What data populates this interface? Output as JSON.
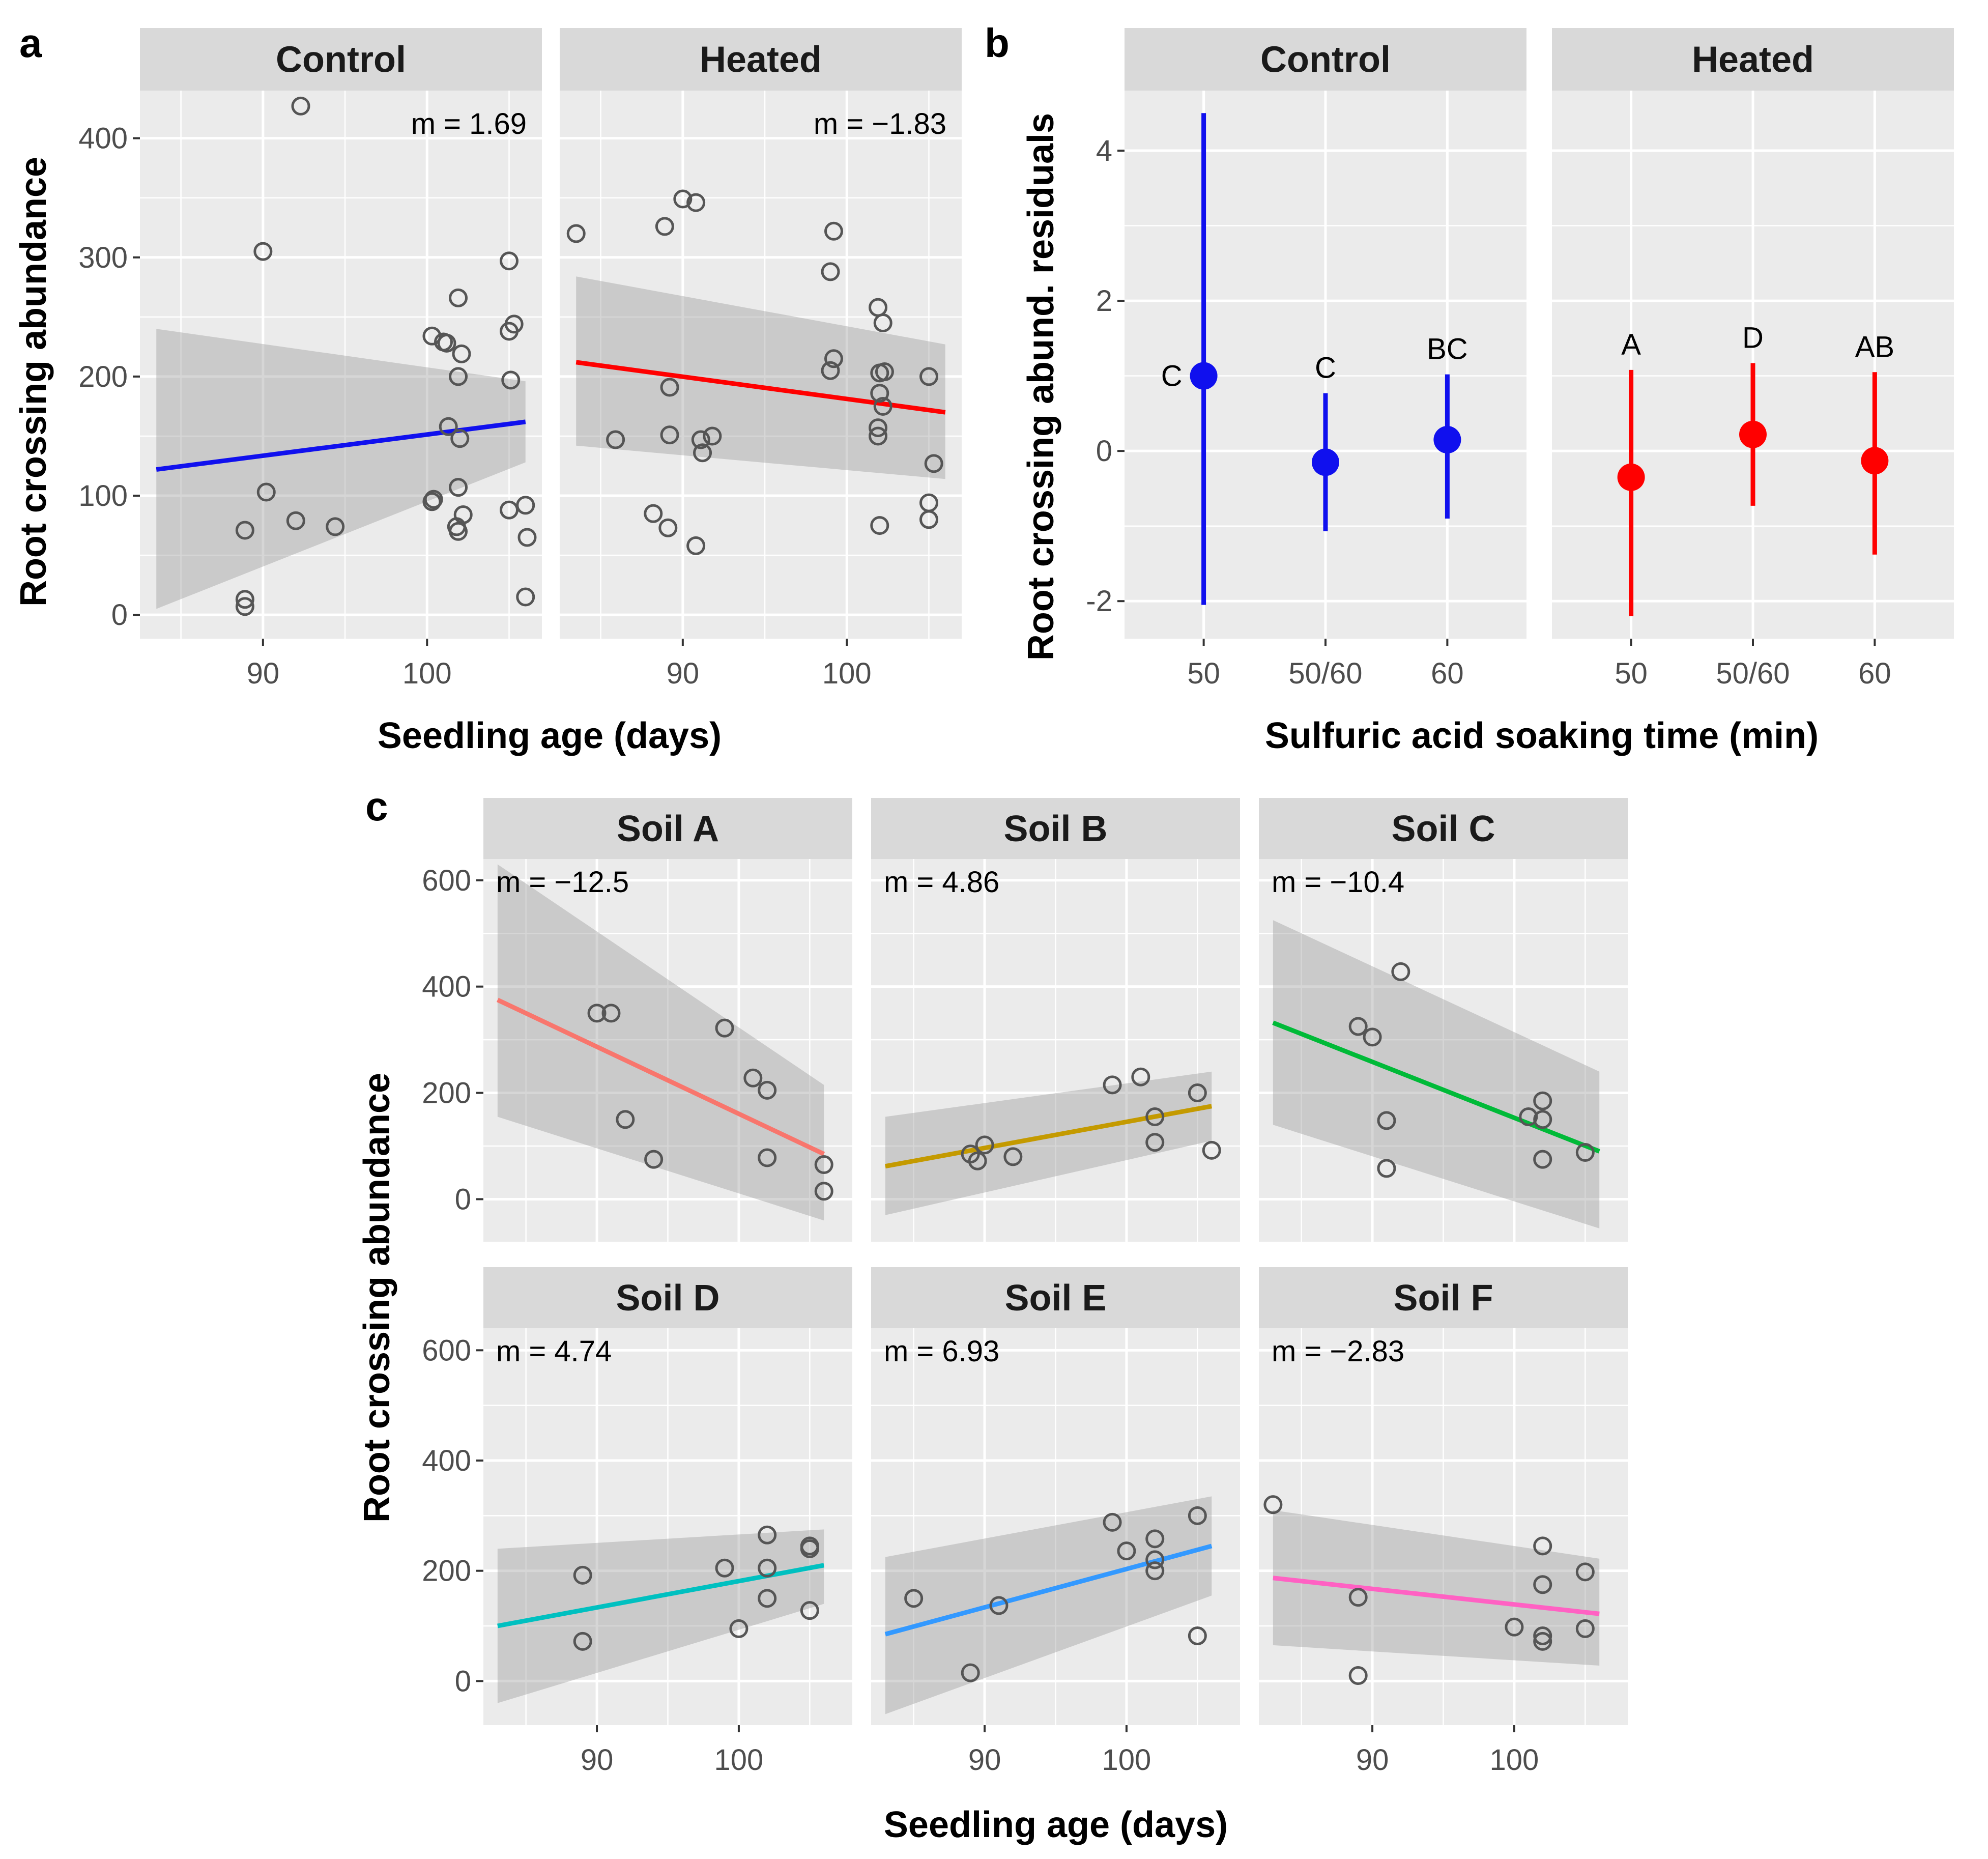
{
  "panel_labels": {
    "a": "a",
    "b": "b",
    "c": "c"
  },
  "colors": {
    "control_blue": "#1010ee",
    "heated_red": "#ff0000",
    "soil_A": "#f8766d",
    "soil_B": "#c49a00",
    "soil_C": "#00ba38",
    "soil_D": "#00c0c0",
    "soil_E": "#3399ff",
    "soil_F": "#ff61c3",
    "points": "#555555",
    "band": "#999999"
  },
  "chart_data": [
    {
      "id": "a",
      "type": "scatter",
      "xlabel": "Seedling age (days)",
      "ylabel": "Root crossing abundance",
      "xlim": [
        82.5,
        107
      ],
      "ylim": [
        -20,
        440
      ],
      "xticks": [
        90,
        100
      ],
      "yticks": [
        0,
        100,
        200,
        300,
        400
      ],
      "facets": [
        {
          "label": "Control",
          "slope_label": "m = 1.69",
          "line_color": "#1010ee",
          "fit": {
            "x": [
              83.5,
              106
            ],
            "y": [
              122,
              162
            ]
          },
          "band": {
            "x": [
              83.5,
              106
            ],
            "upper": [
              240,
              196
            ],
            "lower": [
              5,
              128
            ]
          },
          "points": [
            [
              92.3,
              427
            ],
            [
              90,
              305
            ],
            [
              105,
              297
            ],
            [
              101.9,
              266
            ],
            [
              105.3,
              244
            ],
            [
              105,
              238
            ],
            [
              100.3,
              234
            ],
            [
              101,
              229
            ],
            [
              101.2,
              228
            ],
            [
              102.1,
              219
            ],
            [
              101.9,
              200
            ],
            [
              105.1,
              197
            ],
            [
              101.3,
              158
            ],
            [
              102,
              148
            ],
            [
              90.2,
              103
            ],
            [
              101.9,
              107
            ],
            [
              100.4,
              97
            ],
            [
              100.3,
              95
            ],
            [
              105,
              88
            ],
            [
              106,
              92
            ],
            [
              92,
              79
            ],
            [
              94.4,
              74
            ],
            [
              102.2,
              84
            ],
            [
              101.8,
              74
            ],
            [
              101.9,
              70
            ],
            [
              88.9,
              71
            ],
            [
              106.1,
              65
            ],
            [
              88.9,
              13
            ],
            [
              88.9,
              7
            ],
            [
              106,
              15
            ]
          ]
        },
        {
          "label": "Heated",
          "slope_label": "m = −1.83",
          "line_color": "#ff0000",
          "fit": {
            "x": [
              83.5,
              106
            ],
            "y": [
              212,
              170
            ]
          },
          "band": {
            "x": [
              83.5,
              106
            ],
            "upper": [
              284,
              227
            ],
            "lower": [
              142,
              114
            ]
          },
          "points": [
            [
              83.5,
              320
            ],
            [
              90,
              349
            ],
            [
              90.8,
              346
            ],
            [
              88.9,
              326
            ],
            [
              99.2,
              322
            ],
            [
              99,
              288
            ],
            [
              101.9,
              258
            ],
            [
              102.2,
              245
            ],
            [
              99.2,
              215
            ],
            [
              99,
              205
            ],
            [
              102.3,
              204
            ],
            [
              102,
              203
            ],
            [
              105,
              200
            ],
            [
              89.2,
              191
            ],
            [
              102,
              186
            ],
            [
              102.2,
              175
            ],
            [
              101.9,
              157
            ],
            [
              101.9,
              150
            ],
            [
              85.9,
              147
            ],
            [
              89.2,
              151
            ],
            [
              91.8,
              150
            ],
            [
              91.1,
              147
            ],
            [
              91.2,
              136
            ],
            [
              105.3,
              127
            ],
            [
              105,
              94
            ],
            [
              105,
              80
            ],
            [
              88.2,
              85
            ],
            [
              89.1,
              73
            ],
            [
              102,
              75
            ],
            [
              90.8,
              58
            ]
          ]
        }
      ]
    },
    {
      "id": "b",
      "type": "errorbar",
      "xlabel": "Sulfuric acid soaking time (min)",
      "ylabel": "Root crossing abund. residuals",
      "ylim": [
        -2.5,
        4.8
      ],
      "yticks": [
        -2,
        0,
        2,
        4
      ],
      "ytick_labels": [
        "-2",
        "0",
        "2",
        "4"
      ],
      "categories": [
        "50",
        "50/60",
        "60"
      ],
      "facets": [
        {
          "label": "Control",
          "color": "#1010ee",
          "points": [
            {
              "cat": "50",
              "mean": 1.0,
              "lo": -2.05,
              "hi": 4.5,
              "letter": "C",
              "letter_pos": "left"
            },
            {
              "cat": "50/60",
              "mean": -0.15,
              "lo": -1.07,
              "hi": 0.77,
              "letter": "C",
              "letter_pos": "top"
            },
            {
              "cat": "60",
              "mean": 0.15,
              "lo": -0.9,
              "hi": 1.02,
              "letter": "BC",
              "letter_pos": "top"
            }
          ]
        },
        {
          "label": "Heated",
          "color": "#ff0000",
          "points": [
            {
              "cat": "50",
              "mean": -0.35,
              "lo": -2.2,
              "hi": 1.08,
              "letter": "A",
              "letter_pos": "top"
            },
            {
              "cat": "50/60",
              "mean": 0.22,
              "lo": -0.73,
              "hi": 1.17,
              "letter": "D",
              "letter_pos": "top"
            },
            {
              "cat": "60",
              "mean": -0.13,
              "lo": -1.38,
              "hi": 1.05,
              "letter": "AB",
              "letter_pos": "top"
            }
          ]
        }
      ]
    },
    {
      "id": "c",
      "type": "scatter",
      "xlabel": "Seedling age (days)",
      "ylabel": "Root crossing abundance",
      "xlim": [
        82,
        108
      ],
      "ylim": [
        -80,
        640
      ],
      "xticks": [
        90,
        100
      ],
      "yticks": [
        0,
        200,
        400,
        600
      ],
      "facets": [
        {
          "label": "Soil A",
          "slope_label": "m = −12.5",
          "line_color": "#f8766d",
          "fit": {
            "x": [
              83,
              106
            ],
            "y": [
              375,
              85
            ]
          },
          "band": {
            "x": [
              83,
              106
            ],
            "upper": [
              630,
              215
            ],
            "lower": [
              155,
              -40
            ]
          },
          "points": [
            [
              90,
              350
            ],
            [
              91,
              350
            ],
            [
              92,
              150
            ],
            [
              94,
              75
            ],
            [
              99,
              322
            ],
            [
              101,
              228
            ],
            [
              102,
              205
            ],
            [
              102,
              78
            ],
            [
              106,
              65
            ],
            [
              106,
              15
            ]
          ]
        },
        {
          "label": "Soil B",
          "slope_label": "m = 4.86",
          "line_color": "#c49a00",
          "fit": {
            "x": [
              83,
              106
            ],
            "y": [
              62,
              175
            ]
          },
          "band": {
            "x": [
              83,
              106
            ],
            "upper": [
              155,
              240
            ],
            "lower": [
              -30,
              110
            ]
          },
          "points": [
            [
              89,
              85
            ],
            [
              89.5,
              72
            ],
            [
              90,
              102
            ],
            [
              92,
              80
            ],
            [
              99,
              215
            ],
            [
              101,
              230
            ],
            [
              102,
              155
            ],
            [
              102,
              107
            ],
            [
              105,
              200
            ],
            [
              106,
              92
            ]
          ]
        },
        {
          "label": "Soil C",
          "slope_label": "m = −10.4",
          "line_color": "#00ba38",
          "fit": {
            "x": [
              83,
              106
            ],
            "y": [
              332,
              90
            ]
          },
          "band": {
            "x": [
              83,
              106
            ],
            "upper": [
              525,
              240
            ],
            "lower": [
              140,
              -55
            ]
          },
          "points": [
            [
              92,
              428
            ],
            [
              89,
              325
            ],
            [
              90,
              305
            ],
            [
              91,
              148
            ],
            [
              91,
              58
            ],
            [
              101,
              155
            ],
            [
              102,
              185
            ],
            [
              102,
              150
            ],
            [
              102,
              75
            ],
            [
              105,
              88
            ]
          ]
        },
        {
          "label": "Soil D",
          "slope_label": "m = 4.74",
          "line_color": "#00c0c0",
          "fit": {
            "x": [
              83,
              106
            ],
            "y": [
              100,
              210
            ]
          },
          "band": {
            "x": [
              83,
              106
            ],
            "upper": [
              240,
              275
            ],
            "lower": [
              -40,
              140
            ]
          },
          "points": [
            [
              89,
              192
            ],
            [
              89,
              72
            ],
            [
              99,
              205
            ],
            [
              100,
              95
            ],
            [
              102,
              265
            ],
            [
              102,
              205
            ],
            [
              102,
              150
            ],
            [
              105,
              245
            ],
            [
              105,
              240
            ],
            [
              105,
              128
            ]
          ]
        },
        {
          "label": "Soil E",
          "slope_label": "m = 6.93",
          "line_color": "#3399ff",
          "fit": {
            "x": [
              83,
              106
            ],
            "y": [
              85,
              245
            ]
          },
          "band": {
            "x": [
              83,
              106
            ],
            "upper": [
              225,
              335
            ],
            "lower": [
              -60,
              155
            ]
          },
          "points": [
            [
              85,
              150
            ],
            [
              89,
              15
            ],
            [
              91,
              137
            ],
            [
              99,
              288
            ],
            [
              100,
              236
            ],
            [
              102,
              258
            ],
            [
              102,
              220
            ],
            [
              102,
              200
            ],
            [
              105,
              300
            ],
            [
              105,
              82
            ]
          ]
        },
        {
          "label": "Soil F",
          "slope_label": "m = −2.83",
          "line_color": "#ff61c3",
          "fit": {
            "x": [
              83,
              106
            ],
            "y": [
              187,
              122
            ]
          },
          "band": {
            "x": [
              83,
              106
            ],
            "upper": [
              310,
              222
            ],
            "lower": [
              65,
              28
            ]
          },
          "points": [
            [
              83,
              320
            ],
            [
              89,
              152
            ],
            [
              89,
              10
            ],
            [
              100,
              98
            ],
            [
              102,
              245
            ],
            [
              102,
              175
            ],
            [
              102,
              82
            ],
            [
              102,
              72
            ],
            [
              105,
              198
            ],
            [
              105,
              95
            ]
          ]
        }
      ]
    }
  ]
}
